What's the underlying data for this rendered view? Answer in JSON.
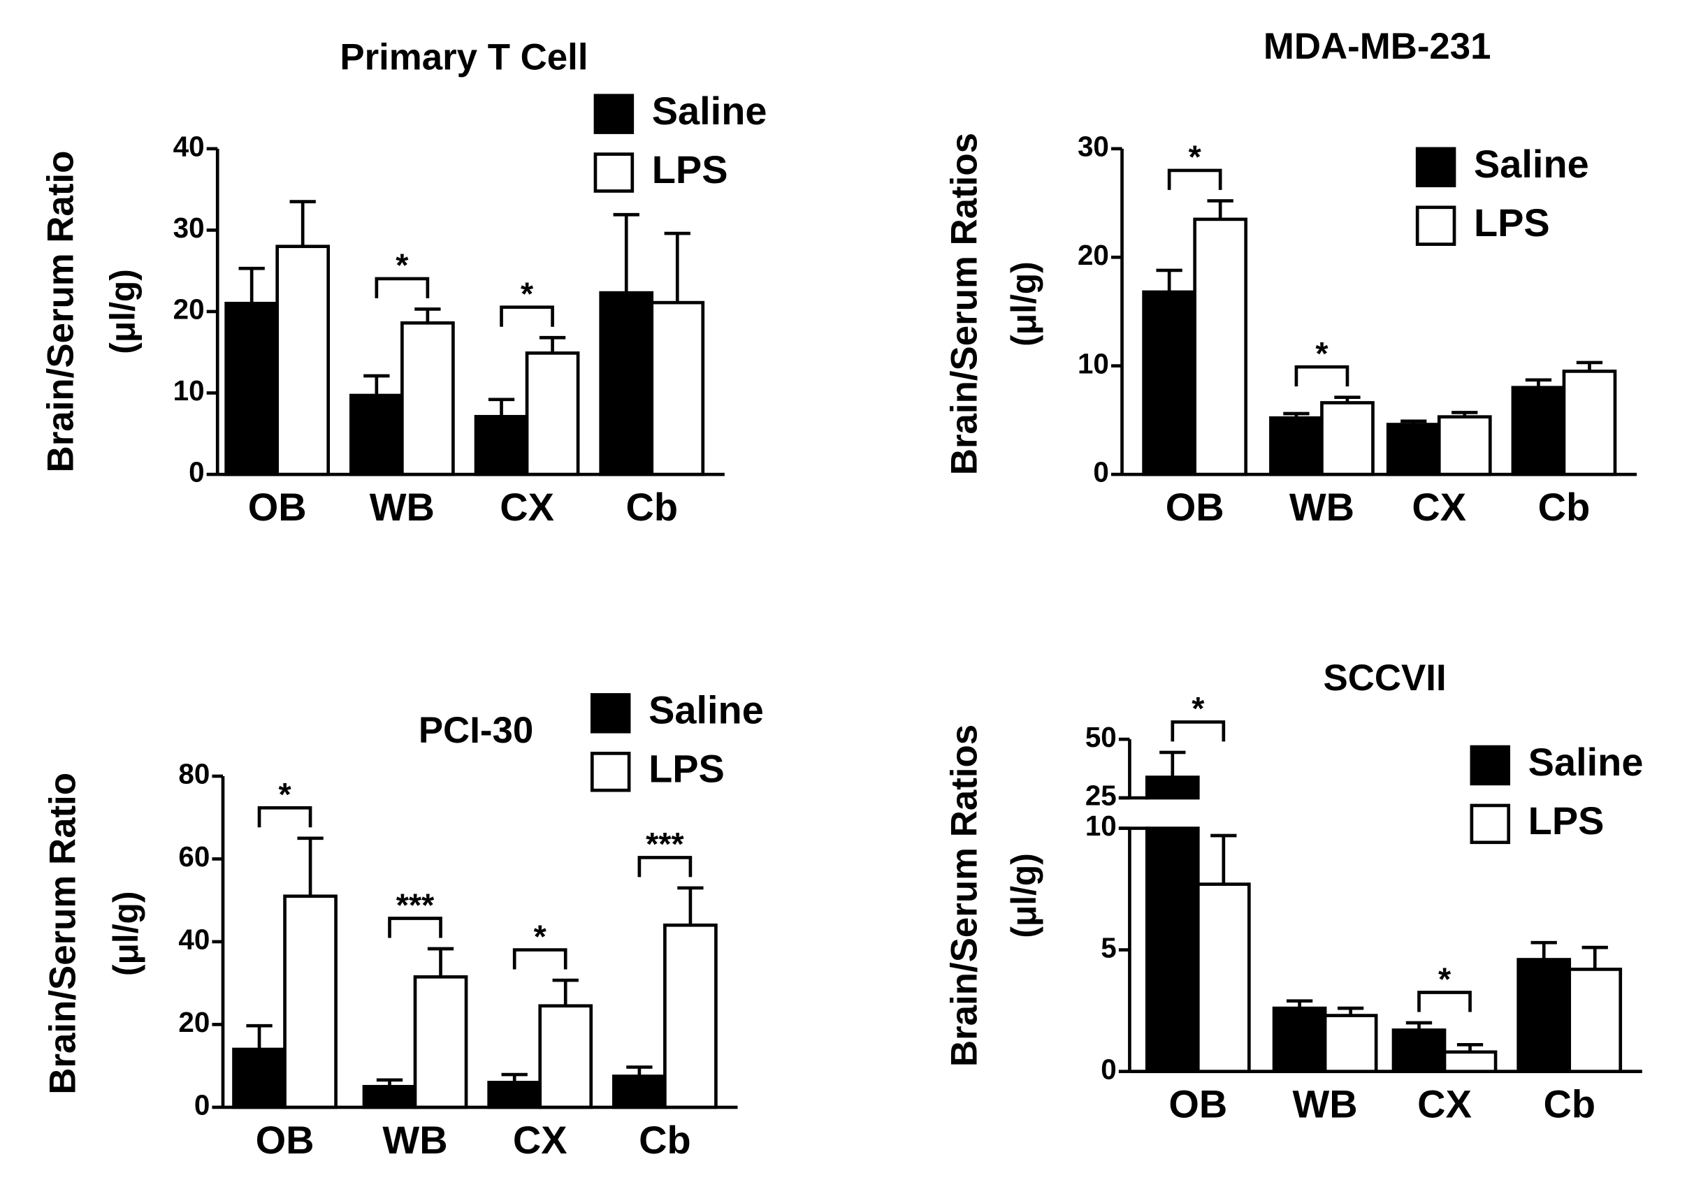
{
  "chart_data": [
    {
      "type": "bar",
      "title": "Primary T Cell",
      "ylabel": [
        "Brain/Serum Ratio",
        "(μl/g)"
      ],
      "categories": [
        "OB",
        "WB",
        "CX",
        "Cb"
      ],
      "series": [
        {
          "name": "Saline",
          "color": "#000000",
          "values": [
            21,
            9.7,
            7.1,
            22.3
          ],
          "errors": [
            4.3,
            2.4,
            2.1,
            9.6
          ]
        },
        {
          "name": "LPS",
          "color": "#ffffff",
          "values": [
            28,
            18.6,
            14.9,
            21.1
          ],
          "errors": [
            5.5,
            1.7,
            1.9,
            8.5
          ]
        }
      ],
      "significance": [
        null,
        "*",
        "*",
        null
      ],
      "ylim": [
        0,
        40
      ],
      "yticks": [
        0,
        10,
        20,
        30,
        40
      ]
    },
    {
      "type": "bar",
      "title": "MDA-MB-231",
      "ylabel": [
        "Brain/Serum Ratios",
        "(μl/g)"
      ],
      "categories": [
        "OB",
        "WB",
        "CX",
        "Cb"
      ],
      "series": [
        {
          "name": "Saline",
          "color": "#000000",
          "values": [
            16.8,
            5.2,
            4.6,
            8.0
          ],
          "errors": [
            2,
            0.4,
            0.3,
            0.7
          ]
        },
        {
          "name": "LPS",
          "color": "#ffffff",
          "values": [
            23.5,
            6.6,
            5.3,
            9.5
          ],
          "errors": [
            1.7,
            0.5,
            0.4,
            0.8
          ]
        }
      ],
      "significance": [
        "*",
        "*",
        null,
        null
      ],
      "ylim": [
        0,
        30
      ],
      "yticks": [
        0,
        10,
        20,
        30
      ]
    },
    {
      "type": "bar",
      "title": "PCI-30",
      "ylabel": [
        "Brain/Serum Ratio",
        "(μl/g)"
      ],
      "categories": [
        "OB",
        "WB",
        "CX",
        "Cb"
      ],
      "series": [
        {
          "name": "Saline",
          "color": "#000000",
          "values": [
            14,
            5,
            6,
            7.5
          ],
          "errors": [
            5.7,
            1.6,
            1.9,
            2.2
          ]
        },
        {
          "name": "LPS",
          "color": "#ffffff",
          "values": [
            51,
            31.5,
            24.5,
            44
          ],
          "errors": [
            14,
            6.8,
            6.2,
            9
          ]
        }
      ],
      "significance": [
        "*",
        "***",
        "*",
        "***"
      ],
      "ylim": [
        0,
        80
      ],
      "yticks": [
        0,
        20,
        40,
        60,
        80
      ]
    },
    {
      "type": "bar",
      "title": "SCCVII",
      "ylabel": [
        "Brain/Serum Ratios",
        "(μl/g)"
      ],
      "categories": [
        "OB",
        "WB",
        "CX",
        "Cb"
      ],
      "series": [
        {
          "name": "Saline",
          "color": "#000000",
          "values": [
            33.8,
            2.6,
            1.7,
            4.6
          ],
          "errors": [
            10.6,
            0.3,
            0.3,
            0.7
          ]
        },
        {
          "name": "LPS",
          "color": "#ffffff",
          "values": [
            7.7,
            2.3,
            0.8,
            4.2
          ],
          "errors": [
            2,
            0.3,
            0.3,
            0.9
          ]
        }
      ],
      "significance": [
        "*",
        null,
        "*",
        null
      ],
      "ylim": [
        0,
        50
      ],
      "axis_break": [
        10,
        25
      ],
      "yticks": [
        0,
        5,
        10,
        25,
        50
      ]
    }
  ]
}
